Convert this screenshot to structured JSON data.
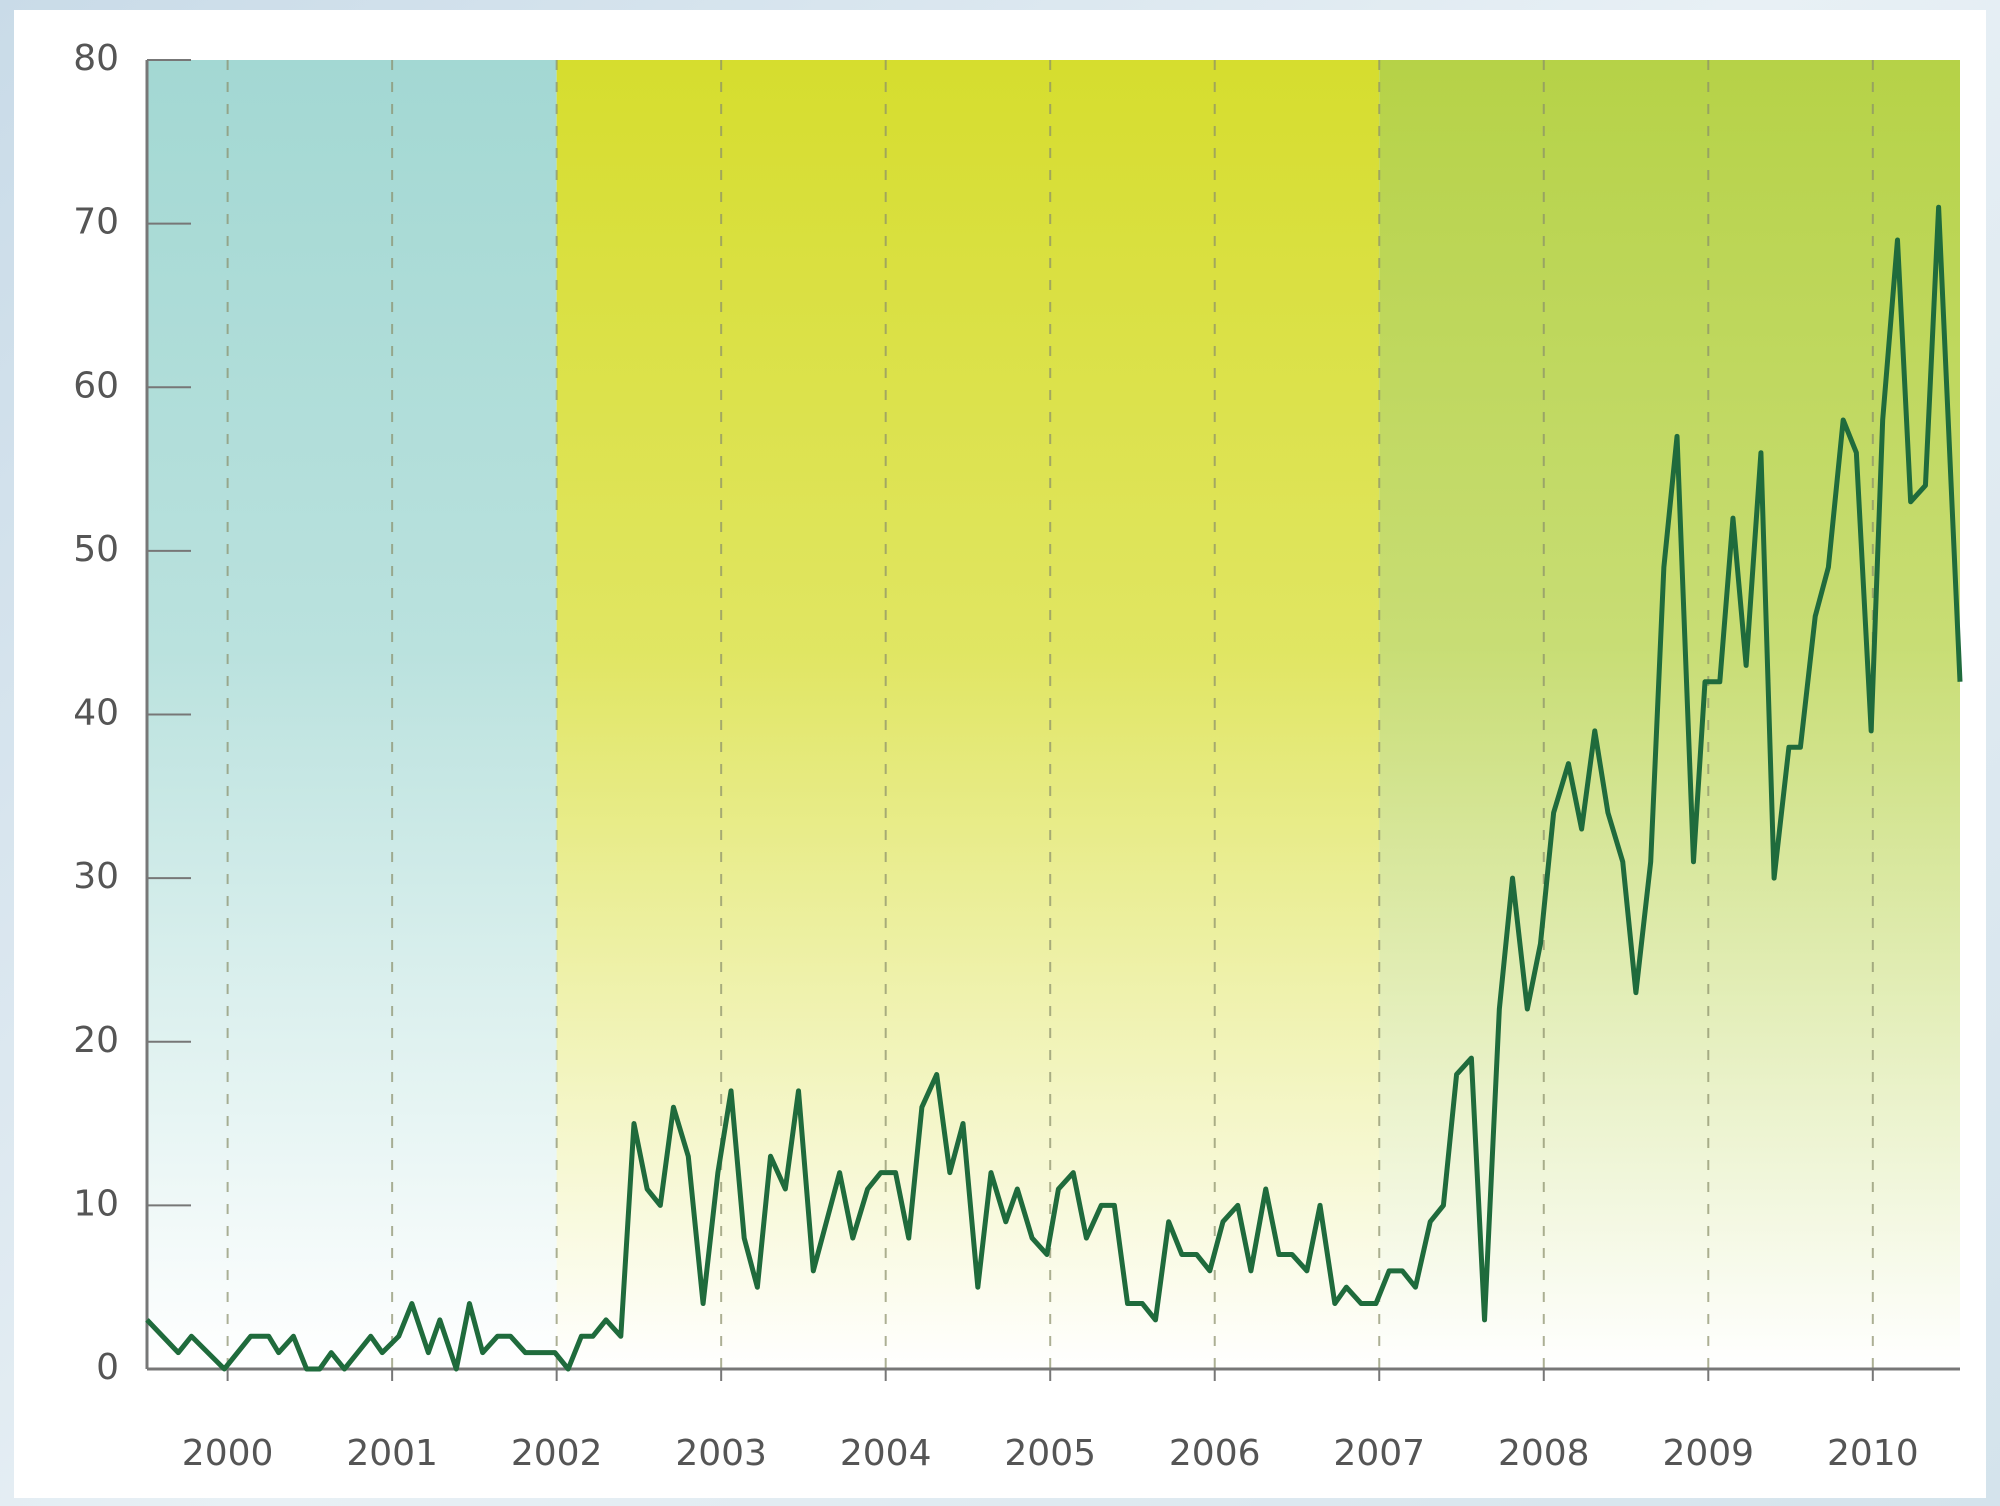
{
  "chart_data": {
    "type": "line",
    "x": [
      1999.51,
      1999.7,
      1999.78,
      1999.98,
      2000.14,
      2000.25,
      2000.31,
      2000.4,
      2000.48,
      2000.56,
      2000.63,
      2000.71,
      2000.79,
      2000.87,
      2000.94,
      2001.04,
      2001.12,
      2001.22,
      2001.29,
      2001.39,
      2001.47,
      2001.55,
      2001.64,
      2001.72,
      2001.81,
      2001.91,
      2001.99,
      2002.07,
      2002.15,
      2002.22,
      2002.3,
      2002.39,
      2002.47,
      2002.55,
      2002.63,
      2002.71,
      2002.8,
      2002.89,
      2002.98,
      2003.06,
      2003.14,
      2003.22,
      2003.3,
      2003.39,
      2003.47,
      2003.56,
      2003.64,
      2003.72,
      2003.8,
      2003.89,
      2003.97,
      2004.06,
      2004.14,
      2004.22,
      2004.31,
      2004.39,
      2004.47,
      2004.56,
      2004.64,
      2004.73,
      2004.8,
      2004.89,
      2004.98,
      2005.05,
      2005.14,
      2005.22,
      2005.31,
      2005.39,
      2005.47,
      2005.56,
      2005.64,
      2005.72,
      2005.8,
      2005.89,
      2005.97,
      2006.05,
      2006.14,
      2006.22,
      2006.31,
      2006.39,
      2006.47,
      2006.56,
      2006.64,
      2006.73,
      2006.8,
      2006.89,
      2006.98,
      2007.06,
      2007.14,
      2007.22,
      2007.31,
      2007.39,
      2007.47,
      2007.56,
      2007.64,
      2007.73,
      2007.81,
      2007.9,
      2007.98,
      2008.06,
      2008.15,
      2008.23,
      2008.31,
      2008.39,
      2008.48,
      2008.56,
      2008.65,
      2008.73,
      2008.81,
      2008.91,
      2008.98,
      2009.07,
      2009.15,
      2009.23,
      2009.32,
      2009.4,
      2009.49,
      2009.56,
      2009.65,
      2009.73,
      2009.82,
      2009.9,
      2009.99,
      2010.06,
      2010.15,
      2010.23,
      2010.32,
      2010.4,
      2010.53
    ],
    "series": [
      {
        "color": "#1f6b3c",
        "values": [
          3,
          1,
          2,
          0,
          2,
          2,
          1,
          2,
          0,
          0,
          1,
          0,
          1,
          2,
          1,
          2,
          4,
          1,
          3,
          0,
          4,
          1,
          2,
          2,
          1,
          1,
          1,
          0,
          2,
          2,
          3,
          2,
          15,
          11,
          10,
          16,
          13,
          4,
          12,
          17,
          8,
          5,
          13,
          11,
          17,
          6,
          9,
          12,
          8,
          11,
          12,
          12,
          8,
          16,
          18,
          12,
          15,
          5,
          12,
          9,
          11,
          8,
          7,
          11,
          12,
          8,
          10,
          10,
          4,
          4,
          3,
          9,
          7,
          7,
          6,
          9,
          10,
          6,
          11,
          7,
          7,
          6,
          10,
          4,
          5,
          4,
          4,
          6,
          6,
          5,
          9,
          10,
          18,
          19,
          3,
          22,
          30,
          22,
          26,
          34,
          37,
          33,
          39,
          34,
          31,
          23,
          31,
          49,
          57,
          31,
          42,
          42,
          52,
          43,
          56,
          30,
          38,
          38,
          46,
          49,
          58,
          56,
          39,
          58,
          69,
          53,
          54,
          71,
          42
        ]
      }
    ],
    "bands": [
      {
        "from": 1999.51,
        "to": 2002,
        "color": "#a3d8d3"
      },
      {
        "from": 2002,
        "to": 2007,
        "color": "#d6dd2e"
      },
      {
        "from": 2007,
        "to": 2010.53,
        "color": "#b6d247"
      }
    ],
    "xlim": [
      1999.51,
      2010.53
    ],
    "ylim": [
      0,
      80
    ],
    "xticks": [
      2000,
      2001,
      2002,
      2003,
      2004,
      2005,
      2006,
      2007,
      2008,
      2009,
      2010
    ],
    "yticks": [
      0,
      10,
      20,
      30,
      40,
      50,
      60,
      70,
      80
    ],
    "grid": true
  }
}
